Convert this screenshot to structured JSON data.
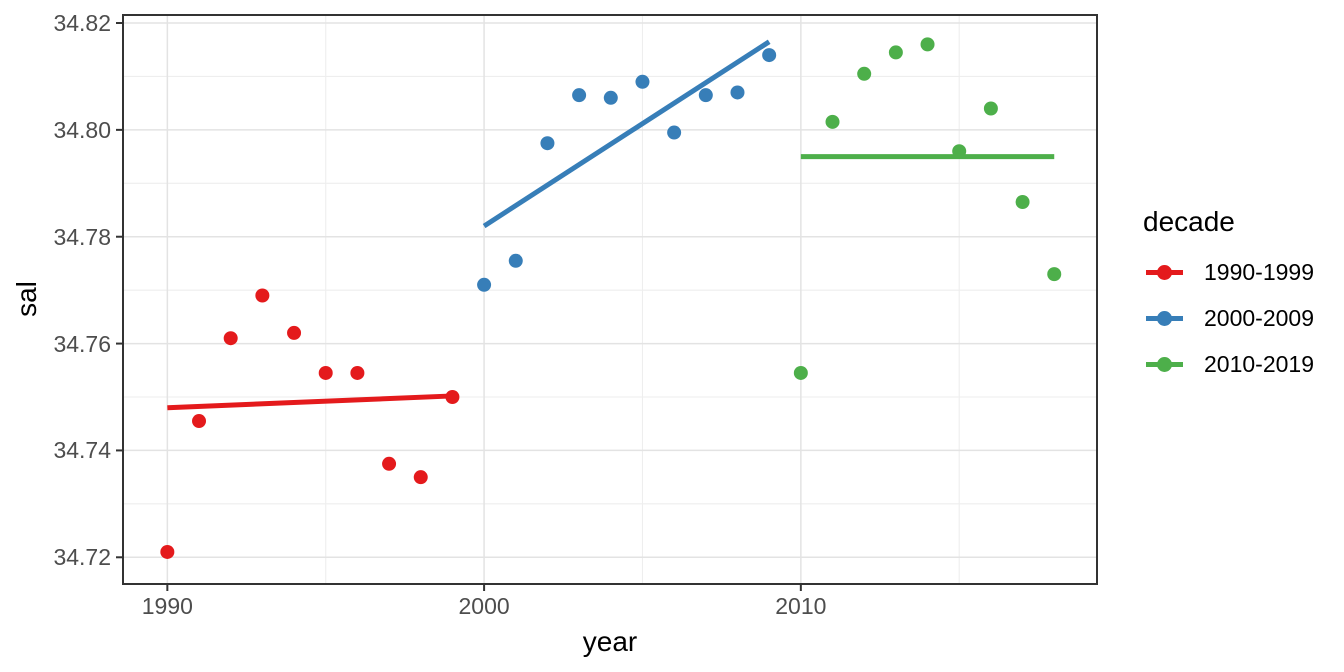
{
  "legend": {
    "title": "decade",
    "entries": [
      {
        "label": "1990-1999",
        "color": "#E41A1C"
      },
      {
        "label": "2000-2009",
        "color": "#377EB8"
      },
      {
        "label": "2010-2019",
        "color": "#4DAF4A"
      }
    ]
  },
  "chart_data": {
    "type": "scatter",
    "title": "",
    "xlabel": "year",
    "ylabel": "sal",
    "xlim": [
      1988.6,
      2019.35
    ],
    "ylim": [
      34.715,
      34.8215
    ],
    "grid": true,
    "legend_position": "right",
    "x_ticks": [
      {
        "value": 1990,
        "label": "1990"
      },
      {
        "value": 2000,
        "label": "2000"
      },
      {
        "value": 2010,
        "label": "2010"
      }
    ],
    "x_minor_gridlines": [
      1995,
      2005,
      2015
    ],
    "y_ticks": [
      {
        "value": 34.72,
        "label": "34.72"
      },
      {
        "value": 34.74,
        "label": "34.74"
      },
      {
        "value": 34.76,
        "label": "34.76"
      },
      {
        "value": 34.78,
        "label": "34.78"
      },
      {
        "value": 34.8,
        "label": "34.80"
      },
      {
        "value": 34.82,
        "label": "34.82"
      }
    ],
    "y_minor_gridlines": [
      34.73,
      34.75,
      34.77,
      34.79,
      34.81
    ],
    "series": [
      {
        "name": "1990-1999",
        "color": "#E41A1C",
        "x": [
          1990,
          1991,
          1992,
          1993,
          1994,
          1995,
          1996,
          1997,
          1998,
          1999
        ],
        "y": [
          34.721,
          34.7455,
          34.761,
          34.769,
          34.762,
          34.7545,
          34.7545,
          34.7375,
          34.735,
          34.75
        ],
        "trend": {
          "x1": 1990,
          "y1": 34.748,
          "x2": 1999,
          "y2": 34.7502
        }
      },
      {
        "name": "2000-2009",
        "color": "#377EB8",
        "x": [
          2000,
          2001,
          2002,
          2003,
          2004,
          2005,
          2006,
          2007,
          2008,
          2009
        ],
        "y": [
          34.771,
          34.7755,
          34.7975,
          34.8065,
          34.806,
          34.809,
          34.7995,
          34.8065,
          34.807,
          34.814
        ],
        "trend": {
          "x1": 2000,
          "y1": 34.782,
          "x2": 2009,
          "y2": 34.8165
        }
      },
      {
        "name": "2010-2019",
        "color": "#4DAF4A",
        "x": [
          2010,
          2011,
          2012,
          2013,
          2014,
          2015,
          2016,
          2017,
          2018
        ],
        "y": [
          34.7545,
          34.8015,
          34.8105,
          34.8145,
          34.816,
          34.796,
          34.804,
          34.7865,
          34.773
        ],
        "trend": {
          "x1": 2010,
          "y1": 34.795,
          "x2": 2018,
          "y2": 34.795
        }
      }
    ],
    "style": {
      "panel_border": "#333333",
      "grid_major": "#E3E3E3",
      "grid_minor": "#EEEEEE",
      "tick_mark_color": "#333333",
      "tick_label_color": "#4d4d4d",
      "background": "#ffffff"
    }
  }
}
